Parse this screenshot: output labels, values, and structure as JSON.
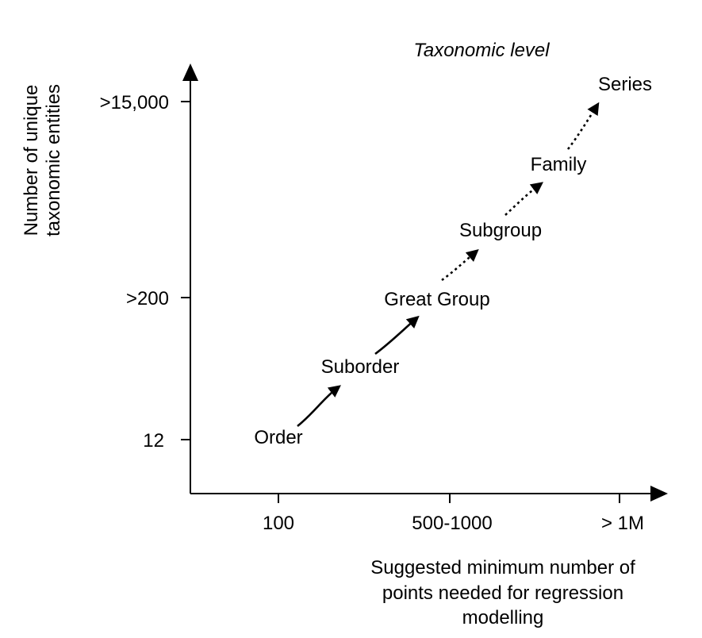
{
  "heading": "Taxonomic level",
  "y_axis": {
    "label_lines": [
      "Number of unique",
      "taxonomic entities"
    ],
    "ticks": [
      "12",
      ">200",
      ">15,000"
    ]
  },
  "x_axis": {
    "label_lines": [
      "Suggested minimum number of",
      "points needed for regression",
      "modelling"
    ],
    "ticks": [
      "100",
      "500-1000",
      "> 1M"
    ]
  },
  "levels": [
    {
      "label": "Order"
    },
    {
      "label": "Suborder"
    },
    {
      "label": "Great Group"
    },
    {
      "label": "Subgroup"
    },
    {
      "label": "Family"
    },
    {
      "label": "Series"
    }
  ],
  "transitions": [
    {
      "from": "Order",
      "to": "Suborder",
      "style": "solid"
    },
    {
      "from": "Suborder",
      "to": "Great Group",
      "style": "solid"
    },
    {
      "from": "Great Group",
      "to": "Subgroup",
      "style": "dotted"
    },
    {
      "from": "Subgroup",
      "to": "Family",
      "style": "dotted"
    },
    {
      "from": "Family",
      "to": "Series",
      "style": "dotted"
    }
  ],
  "colors": {
    "ink": "#000000",
    "background": "#ffffff"
  }
}
